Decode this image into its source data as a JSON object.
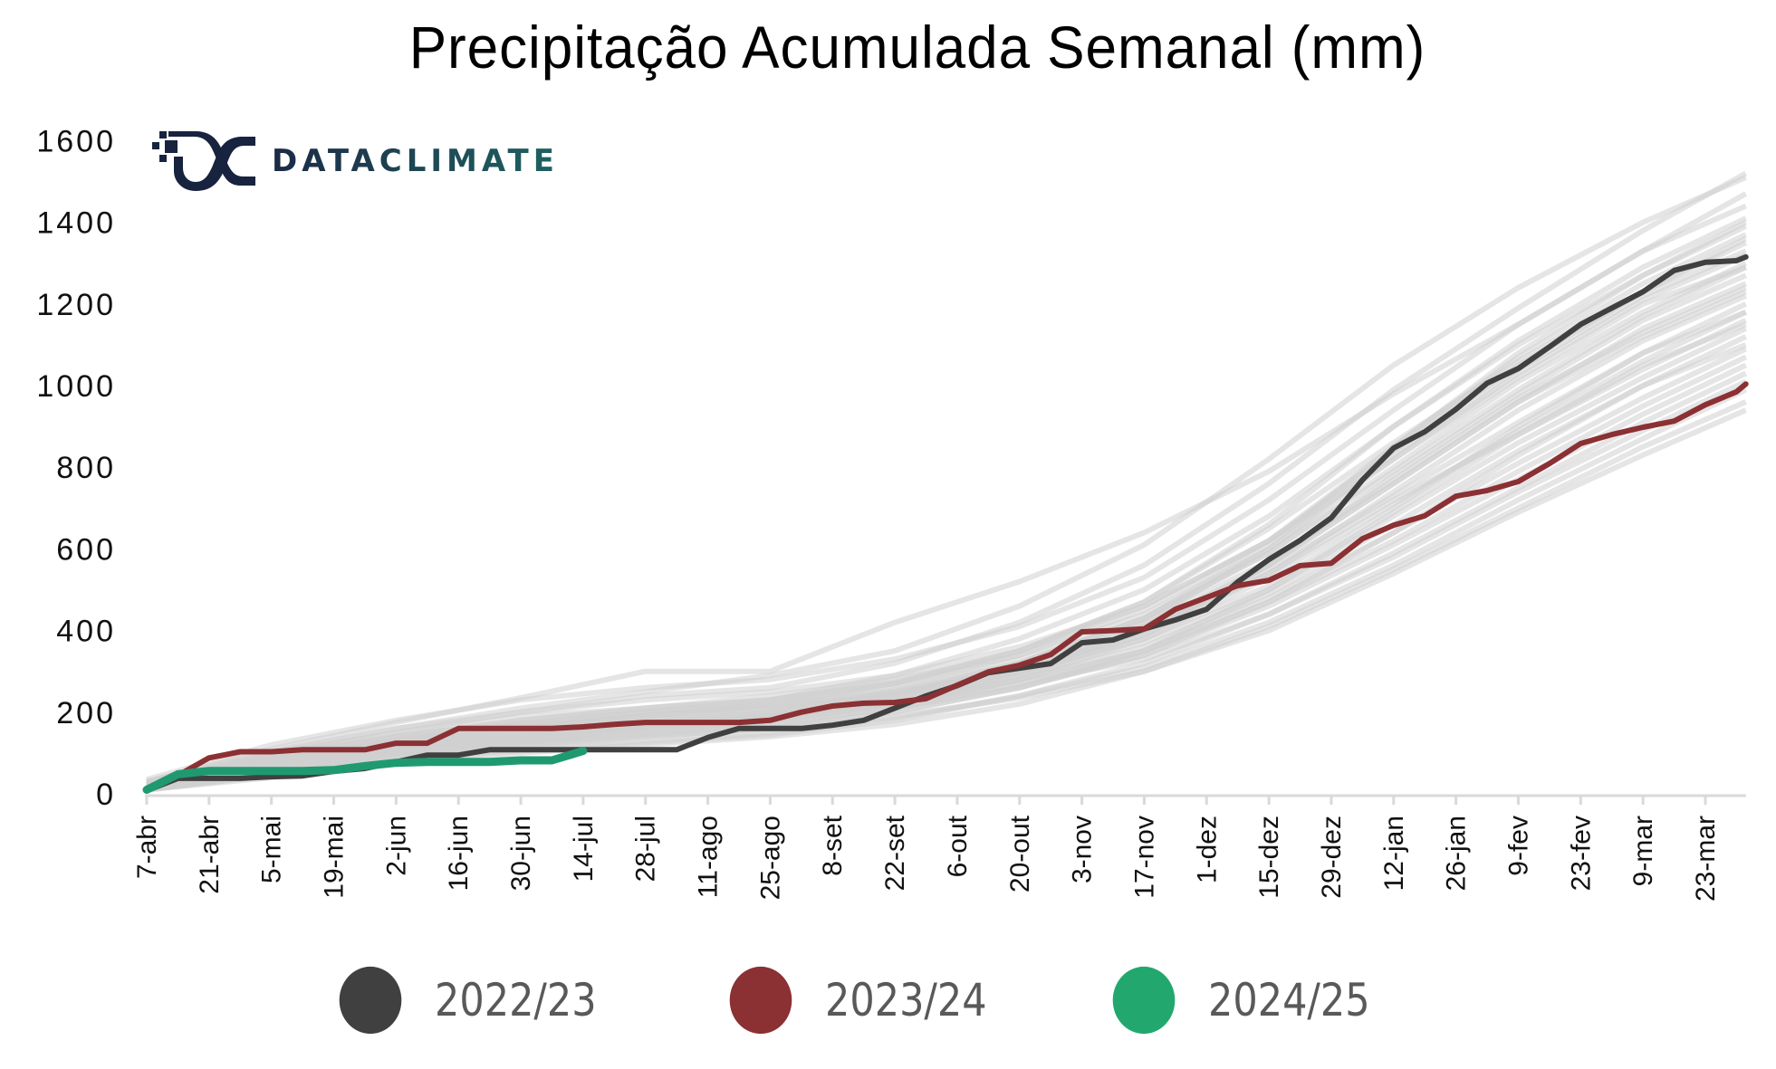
{
  "chart_data": {
    "type": "line",
    "title": "Precipitação Acumulada Semanal (mm)",
    "xlabel": "",
    "ylabel": "",
    "ylim": [
      0,
      1600
    ],
    "yticks": [
      "0",
      "200",
      "400",
      "600",
      "800",
      "1000",
      "1200",
      "1400",
      "1600"
    ],
    "ytick_values": [
      0,
      200,
      400,
      600,
      800,
      1000,
      1200,
      1400,
      1600
    ],
    "x_unit": "week index from 7-abr",
    "xlim": [
      0,
      51.3
    ],
    "xtick_labels": [
      "7-abr",
      "21-abr",
      "5-mai",
      "19-mai",
      "2-jun",
      "16-jun",
      "30-jun",
      "14-jul",
      "28-jul",
      "11-ago",
      "25-ago",
      "8-set",
      "22-set",
      "6-out",
      "20-out",
      "3-nov",
      "17-nov",
      "1-dez",
      "15-dez",
      "29-dez",
      "12-jan",
      "26-jan",
      "9-fev",
      "23-fev",
      "9-mar",
      "23-mar"
    ],
    "xtick_weeks": [
      0,
      2,
      4,
      6,
      8,
      10,
      12,
      14,
      16,
      18,
      20,
      22,
      24,
      26,
      28,
      30,
      32,
      34,
      36,
      38,
      40,
      42,
      44,
      46,
      48,
      50
    ],
    "grid": false,
    "legend_position": "bottom-center",
    "series": [
      {
        "name": "2022/23",
        "color": "#404040",
        "highlight": true,
        "x": [
          0,
          1,
          2,
          3,
          4,
          5,
          6,
          7,
          8,
          9,
          10,
          11,
          12,
          13,
          14,
          15,
          16,
          17,
          18,
          19,
          20,
          21,
          22,
          23,
          24,
          25,
          26,
          27,
          28,
          29,
          30,
          31,
          32,
          33,
          34,
          35,
          36,
          37,
          38,
          39,
          40,
          41,
          42,
          43,
          44,
          45,
          46,
          47,
          48,
          49,
          50,
          51,
          51.3
        ],
        "values": [
          8,
          38,
          38,
          38,
          42,
          44,
          55,
          62,
          78,
          95,
          95,
          108,
          108,
          108,
          108,
          108,
          108,
          108,
          138,
          160,
          160,
          160,
          168,
          180,
          210,
          240,
          265,
          297,
          308,
          319,
          370,
          377,
          404,
          426,
          452,
          519,
          574,
          621,
          676,
          769,
          847,
          887,
          942,
          1006,
          1042,
          1095,
          1150,
          1190,
          1230,
          1282,
          1302,
          1306,
          1315
        ]
      },
      {
        "name": "2023/24",
        "color": "#8b3033",
        "highlight": true,
        "x": [
          0,
          1,
          2,
          3,
          4,
          5,
          6,
          7,
          8,
          9,
          10,
          11,
          12,
          13,
          14,
          15,
          16,
          17,
          18,
          19,
          20,
          21,
          22,
          23,
          24,
          25,
          26,
          27,
          28,
          29,
          30,
          31,
          32,
          33,
          34,
          35,
          36,
          37,
          38,
          39,
          40,
          41,
          42,
          43,
          44,
          45,
          46,
          47,
          48,
          49,
          50,
          51,
          51.3
        ],
        "values": [
          8,
          45,
          88,
          103,
          103,
          108,
          108,
          108,
          124,
          124,
          160,
          160,
          160,
          160,
          164,
          170,
          175,
          175,
          175,
          175,
          180,
          200,
          215,
          222,
          224,
          233,
          266,
          299,
          315,
          341,
          397,
          400,
          404,
          452,
          481,
          510,
          523,
          559,
          565,
          625,
          658,
          681,
          729,
          743,
          765,
          809,
          858,
          880,
          898,
          913,
          953,
          985,
          1004
        ]
      },
      {
        "name": "2024/25",
        "color": "#1f9a70",
        "legend_color": "#22a86e",
        "highlight": true,
        "x": [
          0,
          1,
          2,
          3,
          4,
          5,
          6,
          7,
          8,
          9,
          10,
          11,
          12,
          13,
          14
        ],
        "values": [
          10,
          48,
          56,
          56,
          56,
          56,
          58,
          68,
          76,
          78,
          78,
          78,
          82,
          82,
          105
        ]
      }
    ],
    "background_series": {
      "color": "#d0d0d0",
      "description": "historical years",
      "x": [
        0,
        4,
        8,
        12,
        16,
        20,
        24,
        28,
        32,
        36,
        40,
        44,
        48,
        51.3
      ],
      "lines": [
        [
          30,
          110,
          175,
          235,
          300,
          300,
          420,
          520,
          640,
          790,
          980,
          1150,
          1330,
          1440
        ],
        [
          25,
          100,
          160,
          210,
          250,
          290,
          350,
          460,
          610,
          820,
          1050,
          1240,
          1400,
          1510
        ],
        [
          20,
          95,
          150,
          200,
          240,
          260,
          320,
          420,
          560,
          760,
          990,
          1190,
          1380,
          1520
        ],
        [
          35,
          120,
          180,
          230,
          260,
          280,
          330,
          410,
          530,
          720,
          940,
          1150,
          1330,
          1470
        ],
        [
          20,
          80,
          130,
          170,
          200,
          230,
          290,
          380,
          500,
          680,
          900,
          1100,
          1270,
          1400
        ],
        [
          15,
          70,
          120,
          160,
          190,
          220,
          270,
          350,
          470,
          650,
          860,
          1060,
          1230,
          1360
        ],
        [
          25,
          90,
          140,
          180,
          210,
          240,
          280,
          340,
          440,
          600,
          820,
          1030,
          1210,
          1320
        ],
        [
          20,
          75,
          120,
          150,
          180,
          200,
          250,
          320,
          430,
          590,
          790,
          990,
          1170,
          1290
        ],
        [
          15,
          65,
          110,
          140,
          170,
          190,
          240,
          310,
          410,
          560,
          760,
          960,
          1140,
          1250
        ],
        [
          30,
          100,
          150,
          190,
          210,
          230,
          270,
          330,
          420,
          570,
          770,
          970,
          1130,
          1240
        ],
        [
          20,
          80,
          125,
          160,
          185,
          205,
          240,
          300,
          390,
          540,
          740,
          940,
          1110,
          1220
        ],
        [
          15,
          60,
          100,
          130,
          160,
          185,
          230,
          300,
          400,
          550,
          730,
          910,
          1080,
          1200
        ],
        [
          10,
          55,
          95,
          125,
          150,
          170,
          210,
          280,
          380,
          530,
          710,
          890,
          1060,
          1180
        ],
        [
          25,
          85,
          130,
          165,
          190,
          210,
          245,
          310,
          400,
          540,
          720,
          880,
          1040,
          1160
        ],
        [
          20,
          70,
          110,
          140,
          165,
          190,
          230,
          290,
          370,
          500,
          680,
          860,
          1020,
          1140
        ],
        [
          15,
          60,
          100,
          130,
          155,
          180,
          220,
          280,
          360,
          490,
          660,
          840,
          1000,
          1120
        ],
        [
          10,
          50,
          90,
          120,
          145,
          170,
          210,
          270,
          350,
          480,
          640,
          810,
          970,
          1090
        ],
        [
          20,
          75,
          115,
          145,
          170,
          190,
          225,
          280,
          350,
          470,
          620,
          790,
          950,
          1070
        ],
        [
          15,
          55,
          95,
          120,
          140,
          160,
          200,
          260,
          340,
          460,
          610,
          770,
          930,
          1050
        ],
        [
          10,
          45,
          80,
          105,
          125,
          145,
          180,
          240,
          320,
          440,
          590,
          750,
          910,
          1030
        ],
        [
          25,
          80,
          120,
          150,
          175,
          190,
          220,
          270,
          330,
          440,
          580,
          740,
          890,
          1010
        ],
        [
          15,
          50,
          85,
          110,
          130,
          150,
          185,
          240,
          310,
          420,
          560,
          720,
          870,
          990
        ],
        [
          10,
          40,
          75,
          100,
          120,
          140,
          170,
          220,
          300,
          410,
          550,
          700,
          850,
          960
        ],
        [
          20,
          65,
          100,
          125,
          145,
          160,
          190,
          235,
          300,
          400,
          540,
          690,
          830,
          940
        ],
        [
          30,
          95,
          140,
          175,
          200,
          215,
          250,
          300,
          380,
          510,
          700,
          900,
          1080,
          1180
        ],
        [
          20,
          70,
          115,
          150,
          175,
          200,
          240,
          310,
          420,
          600,
          830,
          1040,
          1220,
          1330
        ],
        [
          15,
          65,
          105,
          135,
          160,
          180,
          220,
          290,
          390,
          560,
          780,
          980,
          1160,
          1270
        ],
        [
          25,
          90,
          135,
          170,
          200,
          225,
          270,
          350,
          470,
          660,
          900,
          1110,
          1290,
          1410
        ],
        [
          20,
          85,
          130,
          165,
          195,
          215,
          255,
          320,
          430,
          610,
          850,
          1070,
          1250,
          1370
        ],
        [
          10,
          55,
          100,
          130,
          155,
          175,
          210,
          260,
          340,
          470,
          640,
          830,
          1000,
          1100
        ],
        [
          30,
          105,
          160,
          200,
          230,
          250,
          290,
          360,
          460,
          620,
          840,
          1050,
          1230,
          1350
        ],
        [
          20,
          70,
          110,
          145,
          175,
          200,
          245,
          320,
          430,
          590,
          800,
          1010,
          1180,
          1300
        ],
        [
          15,
          60,
          105,
          140,
          165,
          185,
          225,
          295,
          400,
          560,
          760,
          960,
          1120,
          1230
        ],
        [
          25,
          90,
          140,
          180,
          210,
          230,
          275,
          350,
          460,
          620,
          820,
          1020,
          1200,
          1290
        ],
        [
          10,
          45,
          85,
          115,
          140,
          160,
          200,
          260,
          350,
          500,
          690,
          880,
          1050,
          1150
        ],
        [
          20,
          80,
          125,
          160,
          190,
          215,
          260,
          340,
          450,
          620,
          850,
          1080,
          1270,
          1390
        ]
      ]
    }
  },
  "header": {
    "title": "Precipitação Acumulada Semanal (mm)"
  },
  "logo": {
    "text": "DATACLIMATE"
  },
  "legend": {
    "items": [
      {
        "label": "2022/23",
        "color": "#404040"
      },
      {
        "label": "2023/24",
        "color": "#8b3033"
      },
      {
        "label": "2024/25",
        "color": "#22a86e"
      }
    ]
  }
}
